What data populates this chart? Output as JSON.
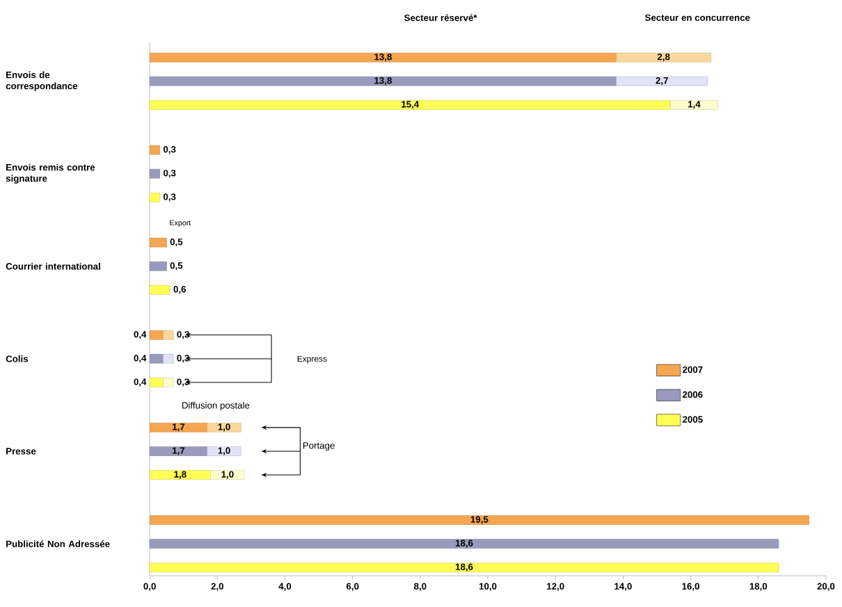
{
  "chart_data": {
    "type": "bar",
    "orientation": "horizontal",
    "stacked": true,
    "categories": [
      null,
      "Envois de correspondance",
      null,
      null,
      "Envois remis contre signature",
      null,
      null,
      "Courrier international",
      null,
      null,
      "Colis",
      null,
      null,
      "Presse",
      null,
      null,
      "Publicité Non Adressée",
      null
    ],
    "series": [
      {
        "name": "2007",
        "color": "#f4a650",
        "values": [
          13.8,
          null,
          null,
          0.3,
          null,
          null,
          0.5,
          null,
          null,
          0.4,
          null,
          null,
          1.7,
          null,
          null,
          19.5,
          null,
          null
        ],
        "value_labels": [
          "13,8",
          null,
          null,
          "0,3",
          null,
          null,
          "0,5",
          null,
          null,
          "0,4",
          null,
          null,
          "1,7",
          null,
          null,
          "19,5",
          null,
          null
        ]
      },
      {
        "color": "#fcd79c",
        "values": [
          2.8,
          null,
          null,
          null,
          null,
          null,
          null,
          null,
          null,
          0.3,
          null,
          null,
          1.0,
          null,
          null,
          null,
          null,
          null
        ],
        "value_labels": [
          "2,8",
          null,
          null,
          null,
          null,
          null,
          null,
          null,
          null,
          "0,3",
          null,
          null,
          "1,0",
          null,
          null,
          null,
          null,
          null
        ]
      },
      {
        "name": "2006",
        "color": "#9a9abd",
        "values": [
          null,
          13.8,
          null,
          null,
          0.3,
          null,
          null,
          0.5,
          null,
          null,
          0.4,
          null,
          null,
          1.7,
          null,
          null,
          18.6,
          null
        ],
        "value_labels": [
          null,
          "13,8",
          null,
          null,
          "0,3",
          null,
          null,
          "0,5",
          null,
          null,
          "0,4",
          null,
          null,
          "1,7",
          null,
          null,
          "18,6",
          null
        ]
      },
      {
        "color": "#e2e2fa",
        "values": [
          null,
          2.7,
          null,
          null,
          null,
          null,
          null,
          null,
          null,
          null,
          0.3,
          null,
          null,
          1.0,
          null,
          null,
          null,
          null
        ],
        "value_labels": [
          null,
          "2,7",
          null,
          null,
          null,
          null,
          null,
          null,
          null,
          null,
          "0,3",
          null,
          null,
          "1,0",
          null,
          null,
          null,
          null
        ]
      },
      {
        "name": "2005",
        "color": "#ffff55",
        "values": [
          null,
          null,
          15.4,
          null,
          null,
          0.3,
          null,
          null,
          0.6,
          null,
          null,
          0.4,
          null,
          null,
          1.8,
          null,
          null,
          18.6
        ],
        "value_labels": [
          null,
          null,
          "15,4",
          null,
          null,
          "0,3",
          null,
          null,
          "0,6",
          null,
          null,
          "0,4",
          null,
          null,
          "1,8",
          null,
          null,
          "18,6"
        ]
      },
      {
        "color": "#ffffcc",
        "values": [
          null,
          null,
          1.4,
          null,
          null,
          null,
          null,
          null,
          null,
          null,
          null,
          0.3,
          null,
          null,
          1.0,
          null,
          null,
          null
        ],
        "value_labels": [
          null,
          null,
          "1,4",
          null,
          null,
          null,
          null,
          null,
          null,
          null,
          null,
          "0,3",
          null,
          null,
          "1,0",
          null,
          null,
          null
        ]
      }
    ],
    "xlim": [
      0,
      20
    ],
    "xticks": [
      {
        "value": 0,
        "label": "0,0"
      },
      {
        "value": 2,
        "label": "2,0"
      },
      {
        "value": 4,
        "label": "4,0"
      },
      {
        "value": 6,
        "label": "6,0"
      },
      {
        "value": 8,
        "label": "8,0"
      },
      {
        "value": 10,
        "label": "10,0"
      },
      {
        "value": 12,
        "label": "12,0"
      },
      {
        "value": 14,
        "label": "14,0"
      },
      {
        "value": 16,
        "label": "16,0"
      },
      {
        "value": 18,
        "label": "18,0"
      },
      {
        "value": 20,
        "label": "20,0"
      }
    ],
    "legend": "right",
    "annotations": [
      "Secteur réservé*",
      "Secteur en concurrence",
      "Export",
      "Express",
      "Diffusion postale",
      "Portage"
    ]
  }
}
